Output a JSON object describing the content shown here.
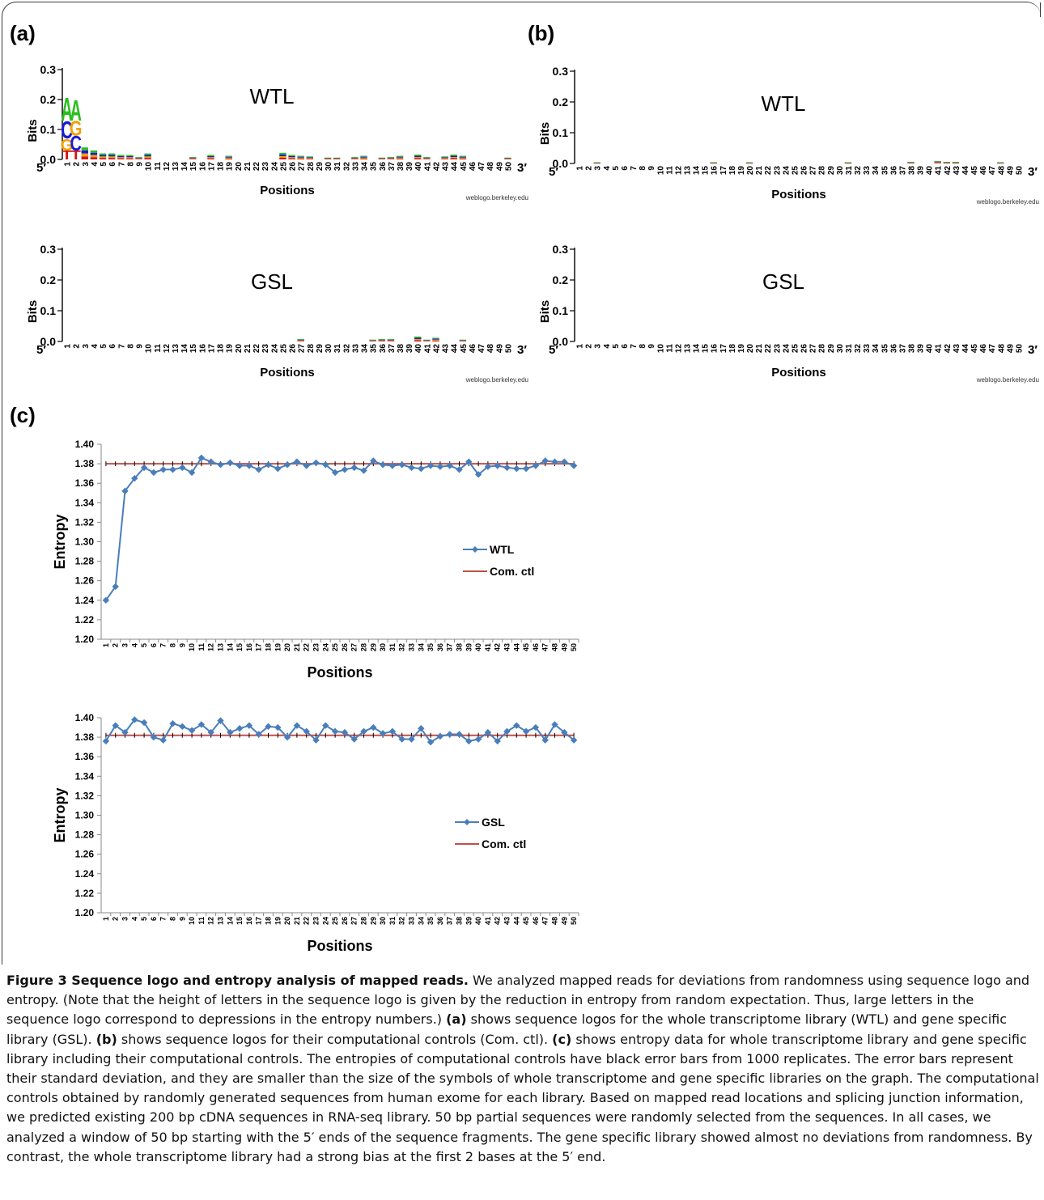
{
  "labels": {
    "a": "(a)",
    "b": "(b)",
    "c": "(c)"
  },
  "logo": {
    "ytick_labels": [
      "0.0",
      "0.1",
      "0.2",
      "0.3"
    ],
    "ylabel": "Bits",
    "xlabel": "Positions",
    "end5": "5′",
    "end3": "3′",
    "credit": "weblogo.berkeley.edu",
    "letter_colors": {
      "A": "#2bbf1f",
      "C": "#1a1ad6",
      "G": "#f2a000",
      "T": "#d41515"
    }
  },
  "entropy_axes": {
    "ytick_labels": [
      "1.20",
      "1.22",
      "1.24",
      "1.26",
      "1.28",
      "1.30",
      "1.32",
      "1.34",
      "1.36",
      "1.38",
      "1.40"
    ],
    "ylabel": "Entropy",
    "xlabel": "Positions",
    "line_color": "#4a7ebb",
    "ctl_color": "#c0504d"
  },
  "chart_data": [
    {
      "type": "bar",
      "panel": "(a)",
      "title": "WTL",
      "x": [
        1,
        2,
        3,
        4,
        5,
        6,
        7,
        8,
        9,
        10,
        11,
        12,
        13,
        14,
        15,
        16,
        17,
        18,
        19,
        20,
        21,
        22,
        23,
        24,
        25,
        26,
        27,
        28,
        29,
        30,
        31,
        32,
        33,
        34,
        35,
        36,
        37,
        38,
        39,
        40,
        41,
        42,
        43,
        44,
        45,
        46,
        47,
        48,
        49,
        50
      ],
      "values": [
        0.21,
        0.2,
        0.04,
        0.03,
        0.02,
        0.02,
        0.015,
        0.015,
        0.008,
        0.02,
        0,
        0,
        0,
        0,
        0.008,
        0,
        0.015,
        0,
        0.012,
        0,
        0,
        0,
        0,
        0,
        0.022,
        0.015,
        0.012,
        0.01,
        0,
        0.006,
        0.006,
        0,
        0.008,
        0.012,
        0,
        0.006,
        0.008,
        0.012,
        0,
        0.016,
        0.008,
        0,
        0.01,
        0.016,
        0.012,
        0,
        0,
        0,
        0,
        0.006
      ],
      "stacks": {
        "1": [
          [
            "T",
            0.03
          ],
          [
            "G",
            0.04
          ],
          [
            "C",
            0.06
          ],
          [
            "A",
            0.08
          ]
        ],
        "2": [
          [
            "T",
            0.03
          ],
          [
            "C",
            0.05
          ],
          [
            "G",
            0.05
          ],
          [
            "A",
            0.07
          ]
        ]
      },
      "ylabel": "Bits",
      "xlabel": "Positions",
      "ylim": [
        0,
        0.3
      ]
    },
    {
      "type": "bar",
      "panel": "(b)",
      "title": "WTL",
      "x": [
        1,
        2,
        3,
        4,
        5,
        6,
        7,
        8,
        9,
        10,
        11,
        12,
        13,
        14,
        15,
        16,
        17,
        18,
        19,
        20,
        21,
        22,
        23,
        24,
        25,
        26,
        27,
        28,
        29,
        30,
        31,
        32,
        33,
        34,
        35,
        36,
        37,
        38,
        39,
        40,
        41,
        42,
        43,
        44,
        45,
        46,
        47,
        48,
        49,
        50
      ],
      "values": [
        0,
        0,
        0.004,
        0,
        0,
        0,
        0,
        0,
        0,
        0,
        0,
        0,
        0,
        0,
        0,
        0.004,
        0,
        0,
        0,
        0.004,
        0,
        0,
        0,
        0,
        0,
        0,
        0,
        0,
        0,
        0,
        0.004,
        0,
        0,
        0,
        0,
        0,
        0,
        0.005,
        0,
        0,
        0.008,
        0.005,
        0.005,
        0,
        0,
        0,
        0,
        0.004,
        0,
        0
      ],
      "ylabel": "Bits",
      "xlabel": "Positions",
      "ylim": [
        0,
        0.3
      ]
    },
    {
      "type": "bar",
      "panel": "(a)",
      "title": "GSL",
      "x": [
        1,
        2,
        3,
        4,
        5,
        6,
        7,
        8,
        9,
        10,
        11,
        12,
        13,
        14,
        15,
        16,
        17,
        18,
        19,
        20,
        21,
        22,
        23,
        24,
        25,
        26,
        27,
        28,
        29,
        30,
        31,
        32,
        33,
        34,
        35,
        36,
        37,
        38,
        39,
        40,
        41,
        42,
        43,
        44,
        45,
        46,
        47,
        48,
        49,
        50
      ],
      "values": [
        0,
        0,
        0,
        0,
        0,
        0,
        0,
        0,
        0,
        0,
        0,
        0,
        0,
        0,
        0,
        0,
        0,
        0,
        0,
        0,
        0,
        0,
        0,
        0,
        0,
        0,
        0.008,
        0,
        0,
        0,
        0,
        0,
        0,
        0,
        0.006,
        0.008,
        0.008,
        0,
        0,
        0.016,
        0.006,
        0.012,
        0,
        0,
        0.006,
        0,
        0,
        0,
        0,
        0
      ],
      "ylabel": "Bits",
      "xlabel": "Positions",
      "ylim": [
        0,
        0.3
      ]
    },
    {
      "type": "bar",
      "panel": "(b)",
      "title": "GSL",
      "x": [
        1,
        2,
        3,
        4,
        5,
        6,
        7,
        8,
        9,
        10,
        11,
        12,
        13,
        14,
        15,
        16,
        17,
        18,
        19,
        20,
        21,
        22,
        23,
        24,
        25,
        26,
        27,
        28,
        29,
        30,
        31,
        32,
        33,
        34,
        35,
        36,
        37,
        38,
        39,
        40,
        41,
        42,
        43,
        44,
        45,
        46,
        47,
        48,
        49,
        50
      ],
      "values": [
        0,
        0,
        0,
        0,
        0,
        0,
        0,
        0,
        0,
        0,
        0,
        0,
        0,
        0,
        0,
        0,
        0,
        0,
        0,
        0,
        0,
        0,
        0,
        0,
        0,
        0,
        0,
        0,
        0,
        0,
        0,
        0,
        0,
        0,
        0,
        0,
        0,
        0,
        0,
        0,
        0,
        0,
        0,
        0,
        0,
        0,
        0,
        0,
        0,
        0
      ],
      "ylabel": "Bits",
      "xlabel": "Positions",
      "ylim": [
        0,
        0.3
      ]
    },
    {
      "type": "line",
      "panel": "(c)",
      "x": [
        1,
        2,
        3,
        4,
        5,
        6,
        7,
        8,
        9,
        10,
        11,
        12,
        13,
        14,
        15,
        16,
        17,
        18,
        19,
        20,
        21,
        22,
        23,
        24,
        25,
        26,
        27,
        28,
        29,
        30,
        31,
        32,
        33,
        34,
        35,
        36,
        37,
        38,
        39,
        40,
        41,
        42,
        43,
        44,
        45,
        46,
        47,
        48,
        49,
        50
      ],
      "series": [
        {
          "name": "WTL",
          "values": [
            1.24,
            1.254,
            1.352,
            1.365,
            1.376,
            1.371,
            1.374,
            1.374,
            1.376,
            1.371,
            1.386,
            1.382,
            1.379,
            1.381,
            1.378,
            1.378,
            1.374,
            1.379,
            1.375,
            1.379,
            1.382,
            1.378,
            1.381,
            1.379,
            1.371,
            1.374,
            1.376,
            1.373,
            1.383,
            1.379,
            1.378,
            1.379,
            1.376,
            1.375,
            1.378,
            1.377,
            1.378,
            1.374,
            1.382,
            1.369,
            1.377,
            1.378,
            1.376,
            1.375,
            1.375,
            1.378,
            1.383,
            1.382,
            1.382,
            1.378
          ]
        },
        {
          "name": "Com. ctl",
          "values": [
            1.38,
            1.38,
            1.38,
            1.38,
            1.38,
            1.38,
            1.38,
            1.38,
            1.38,
            1.38,
            1.38,
            1.38,
            1.38,
            1.38,
            1.38,
            1.38,
            1.38,
            1.38,
            1.38,
            1.38,
            1.38,
            1.38,
            1.38,
            1.38,
            1.38,
            1.38,
            1.38,
            1.38,
            1.38,
            1.38,
            1.38,
            1.38,
            1.38,
            1.38,
            1.38,
            1.38,
            1.38,
            1.38,
            1.38,
            1.38,
            1.38,
            1.38,
            1.38,
            1.38,
            1.38,
            1.38,
            1.38,
            1.38,
            1.38,
            1.38
          ]
        }
      ],
      "xlabel": "Positions",
      "ylabel": "Entropy",
      "ylim": [
        1.2,
        1.4
      ]
    },
    {
      "type": "line",
      "panel": "(c)",
      "x": [
        1,
        2,
        3,
        4,
        5,
        6,
        7,
        8,
        9,
        10,
        11,
        12,
        13,
        14,
        15,
        16,
        17,
        18,
        19,
        20,
        21,
        22,
        23,
        24,
        25,
        26,
        27,
        28,
        29,
        30,
        31,
        32,
        33,
        34,
        35,
        36,
        37,
        38,
        39,
        40,
        41,
        42,
        43,
        44,
        45,
        46,
        47,
        48,
        49,
        50
      ],
      "series": [
        {
          "name": "GSL",
          "values": [
            1.376,
            1.392,
            1.385,
            1.398,
            1.395,
            1.38,
            1.377,
            1.394,
            1.391,
            1.387,
            1.393,
            1.385,
            1.397,
            1.385,
            1.389,
            1.392,
            1.383,
            1.391,
            1.39,
            1.38,
            1.392,
            1.386,
            1.377,
            1.392,
            1.386,
            1.385,
            1.378,
            1.386,
            1.39,
            1.384,
            1.386,
            1.378,
            1.378,
            1.389,
            1.375,
            1.381,
            1.383,
            1.383,
            1.376,
            1.378,
            1.385,
            1.376,
            1.386,
            1.392,
            1.386,
            1.39,
            1.377,
            1.393,
            1.385,
            1.377
          ]
        },
        {
          "name": "Com. ctl",
          "values": [
            1.382,
            1.382,
            1.382,
            1.382,
            1.382,
            1.382,
            1.382,
            1.382,
            1.382,
            1.382,
            1.382,
            1.382,
            1.382,
            1.382,
            1.382,
            1.382,
            1.382,
            1.382,
            1.382,
            1.382,
            1.382,
            1.382,
            1.382,
            1.382,
            1.382,
            1.382,
            1.382,
            1.382,
            1.382,
            1.382,
            1.382,
            1.382,
            1.382,
            1.382,
            1.382,
            1.382,
            1.382,
            1.382,
            1.382,
            1.382,
            1.382,
            1.382,
            1.382,
            1.382,
            1.382,
            1.382,
            1.382,
            1.382,
            1.382,
            1.382
          ]
        }
      ],
      "xlabel": "Positions",
      "ylabel": "Entropy",
      "ylim": [
        1.2,
        1.4
      ]
    }
  ],
  "caption": {
    "title": "Figure 3 Sequence logo and entropy analysis of mapped reads.",
    "s1": " We analyzed mapped reads for deviations from randomness using sequence logo and entropy. (Note that the height of letters in the sequence logo is given by the reduction in entropy from random expectation. Thus, large letters in the sequence logo correspond to depressions in the entropy numbers.) ",
    "la": "(a)",
    "s2": " shows sequence logos for the whole transcriptome library (WTL) and gene specific library (GSL). ",
    "lb": "(b)",
    "s3": " shows sequence logos for their computational controls (Com. ctl). ",
    "lc": "(c)",
    "s4": " shows entropy data for whole transcriptome library and gene specific library including their computational controls. The entropies of computational controls have black error bars from 1000 replicates. The error bars represent their standard deviation, and they are smaller than the size of the symbols of whole transcriptome and gene specific libraries on the graph. The computational controls obtained by randomly generated sequences from human exome for each library. Based on mapped read locations and splicing junction information, we predicted existing 200 bp cDNA sequences in RNA-seq library. 50 bp partial sequences were randomly selected from the sequences. In all cases, we analyzed a window of 50 bp starting with the 5′ ends of the sequence fragments. The gene specific library showed almost no deviations from randomness. By contrast, the whole transcriptome library had a strong bias at the first 2 bases at the 5′ end."
  }
}
